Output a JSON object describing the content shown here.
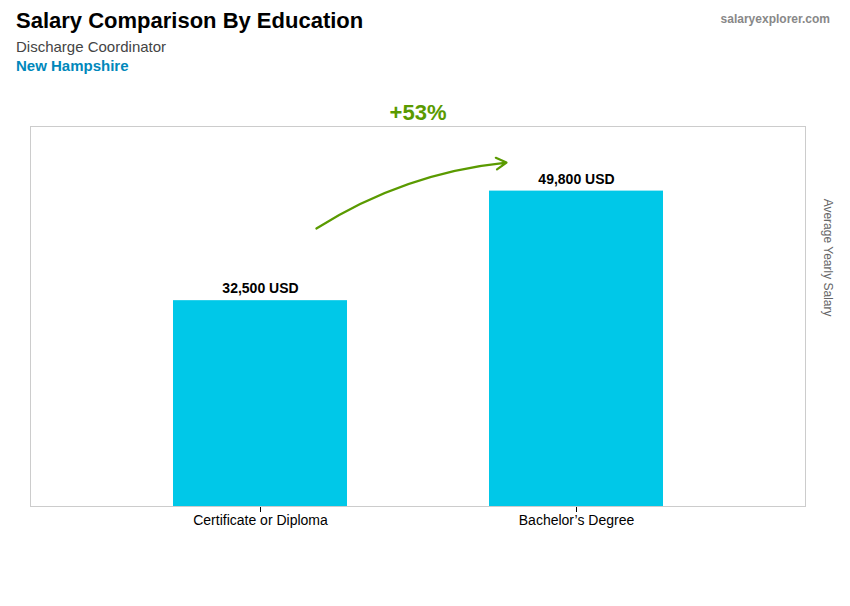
{
  "chart_data": {
    "type": "bar",
    "title": "Salary Comparison By Education",
    "subtitle": [
      "Discharge Coordinator",
      "New Hampshire"
    ],
    "ylabel": "Average Yearly Salary",
    "categories": [
      "Certificate or Diploma",
      "Bachelor’s Degree"
    ],
    "values": [
      32500,
      49800
    ],
    "value_labels": [
      "32,500 USD",
      "49,800 USD"
    ],
    "data_labels": true,
    "color": "#00C8E8",
    "ylim": [
      0,
      60000
    ],
    "tick_labels": "x",
    "annotations": [
      "+53%",
      "salaryexplorer.com"
    ]
  }
}
